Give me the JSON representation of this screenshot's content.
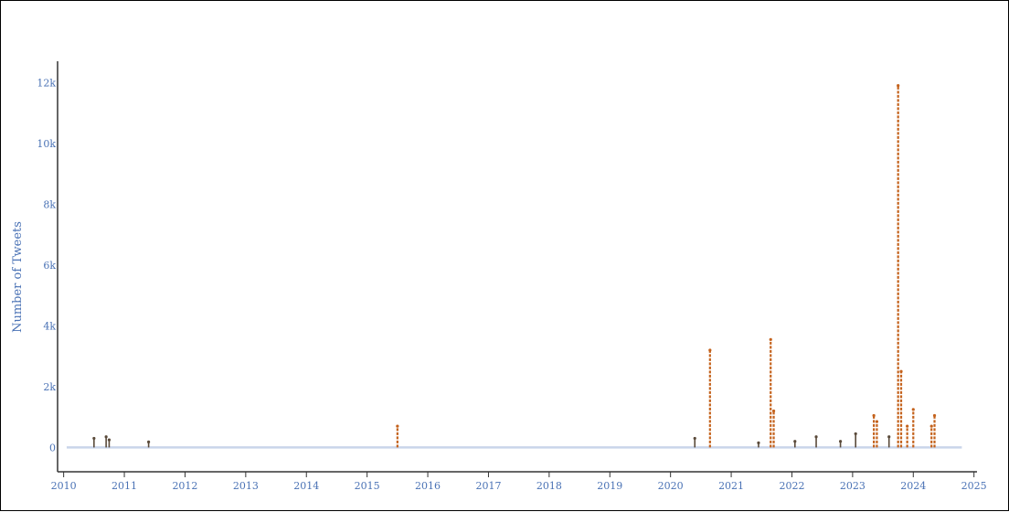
{
  "chart_data": {
    "type": "line",
    "title": "",
    "xlabel": "",
    "ylabel": "Number of Tweets",
    "x_ticks": [
      "2010",
      "2011",
      "2012",
      "2013",
      "2014",
      "2015",
      "2016",
      "2017",
      "2018",
      "2019",
      "2020",
      "2021",
      "2022",
      "2023",
      "2024",
      "2025"
    ],
    "y_ticks": [
      "0",
      "2k",
      "4k",
      "6k",
      "8k",
      "10k",
      "12k"
    ],
    "xlim": [
      2009.9,
      2025.05
    ],
    "ylim": [
      -800,
      12700
    ],
    "grid": false,
    "legend": "none",
    "colors": {
      "baseline": "#c9d5ea",
      "spikes": "#c4621c",
      "dark_marks": "#5a4a3a",
      "axis": "#333333",
      "tick_text": "#4a72b5"
    },
    "series": [
      {
        "values": [
          {
            "x": 2010.5,
            "y": 300
          },
          {
            "x": 2010.7,
            "y": 350
          },
          {
            "x": 2010.75,
            "y": 250
          },
          {
            "x": 2011.4,
            "y": 180
          },
          {
            "x": 2015.5,
            "y": 700
          },
          {
            "x": 2020.4,
            "y": 300
          },
          {
            "x": 2020.65,
            "y": 3200
          },
          {
            "x": 2021.45,
            "y": 150
          },
          {
            "x": 2021.65,
            "y": 3550
          },
          {
            "x": 2021.7,
            "y": 1200
          },
          {
            "x": 2022.05,
            "y": 200
          },
          {
            "x": 2022.4,
            "y": 350
          },
          {
            "x": 2022.8,
            "y": 200
          },
          {
            "x": 2023.05,
            "y": 450
          },
          {
            "x": 2023.35,
            "y": 1050
          },
          {
            "x": 2023.4,
            "y": 850
          },
          {
            "x": 2023.6,
            "y": 350
          },
          {
            "x": 2023.75,
            "y": 11900
          },
          {
            "x": 2023.8,
            "y": 2500
          },
          {
            "x": 2023.9,
            "y": 700
          },
          {
            "x": 2024.0,
            "y": 1250
          },
          {
            "x": 2024.3,
            "y": 700
          },
          {
            "x": 2024.35,
            "y": 1050
          }
        ]
      }
    ]
  }
}
